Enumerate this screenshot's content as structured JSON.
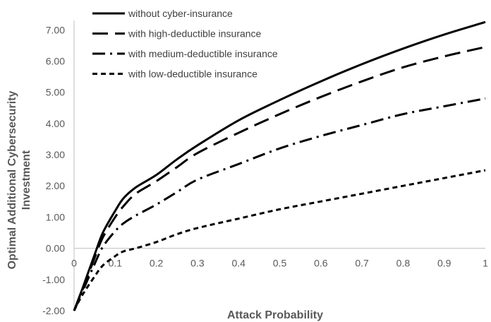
{
  "chart_data": {
    "type": "line",
    "xlabel": "Attack Probability",
    "ylabel_lines": [
      "Optimal Additional Cybersecurity",
      "Investment"
    ],
    "xlim": [
      0,
      1
    ],
    "ylim": [
      -2,
      7.3
    ],
    "x_ticks": [
      "0",
      "0.1",
      "0.2",
      "0.3",
      "0.4",
      "0.5",
      "0.6",
      "0.7",
      "0.8",
      "0.9",
      "1"
    ],
    "y_ticks": [
      "-2.00",
      "-1.00",
      "0.00",
      "1.00",
      "2.00",
      "3.00",
      "4.00",
      "5.00",
      "6.00",
      "7.00"
    ],
    "grid": false,
    "legend_position": "top-left",
    "x": [
      0,
      0.02,
      0.05,
      0.07,
      0.1,
      0.12,
      0.15,
      0.2,
      0.25,
      0.3,
      0.4,
      0.5,
      0.6,
      0.7,
      0.8,
      0.9,
      1.0
    ],
    "series": [
      {
        "name": "without cyber-insurance",
        "dash": "solid",
        "values": [
          -2.0,
          -1.3,
          -0.2,
          0.5,
          1.2,
          1.6,
          1.95,
          2.35,
          2.85,
          3.3,
          4.1,
          4.75,
          5.35,
          5.9,
          6.4,
          6.85,
          7.25
        ]
      },
      {
        "name": "with high-deductible insurance",
        "dash": "long-dash",
        "values": [
          -2.0,
          -1.35,
          -0.3,
          0.35,
          1.0,
          1.35,
          1.75,
          2.15,
          2.6,
          3.05,
          3.7,
          4.3,
          4.85,
          5.35,
          5.8,
          6.15,
          6.45
        ]
      },
      {
        "name": "with medium-deductible insurance",
        "dash": "dash-dot",
        "values": [
          -2.0,
          -1.4,
          -0.5,
          0.05,
          0.55,
          0.8,
          1.05,
          1.4,
          1.8,
          2.2,
          2.7,
          3.2,
          3.6,
          3.95,
          4.3,
          4.55,
          4.8
        ]
      },
      {
        "name": "with low-deductible insurance",
        "dash": "short-dash",
        "values": [
          -2.0,
          -1.5,
          -0.9,
          -0.55,
          -0.25,
          -0.1,
          0.0,
          0.2,
          0.45,
          0.65,
          0.95,
          1.25,
          1.5,
          1.75,
          2.0,
          2.25,
          2.5
        ]
      }
    ]
  },
  "colors": {
    "line": "#000000",
    "text": "#595959",
    "axis": "#bfbfbf"
  }
}
